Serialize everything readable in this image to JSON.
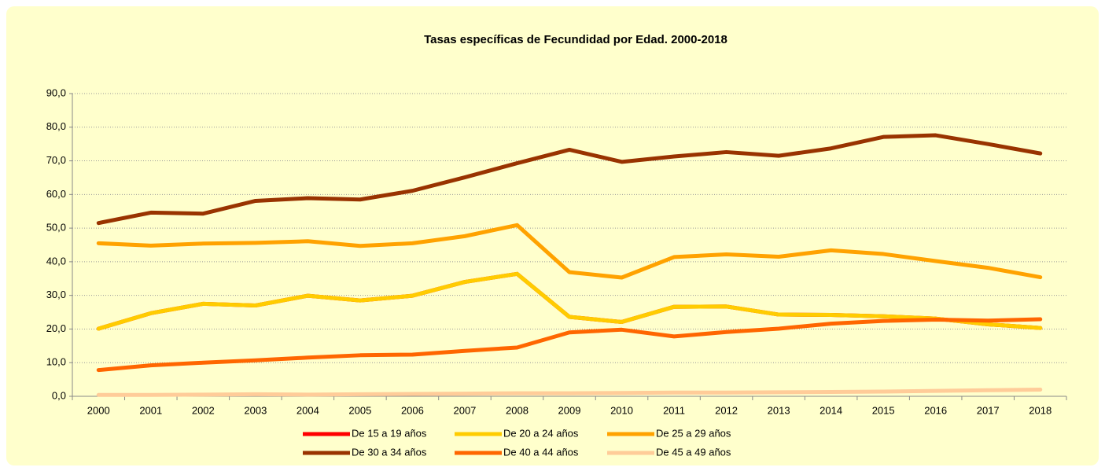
{
  "chart_data": {
    "type": "line",
    "title": "Tasas específicas de Fecundidad por Edad. 2000-2018",
    "categories": [
      "2000",
      "2001",
      "2002",
      "2003",
      "2004",
      "2005",
      "2006",
      "2007",
      "2008",
      "2009",
      "2010",
      "2011",
      "2012",
      "2013",
      "2014",
      "2015",
      "2016",
      "2017",
      "2018"
    ],
    "series": [
      {
        "name": "De 15 a 19 años",
        "color": "#ff0000",
        "values": [
          20.1,
          24.7,
          27.5,
          27.0,
          29.9,
          28.5,
          29.9,
          34.0,
          36.4,
          23.6,
          22.1,
          26.6,
          26.7,
          24.3,
          24.2,
          23.8,
          23.1,
          21.4,
          20.3
        ]
      },
      {
        "name": "De 20 a 24 años",
        "color": "#ffcc00",
        "values": [
          20.1,
          24.7,
          27.5,
          27.0,
          29.9,
          28.5,
          29.9,
          34.0,
          36.4,
          23.6,
          22.1,
          26.6,
          26.7,
          24.3,
          24.2,
          23.8,
          23.1,
          21.4,
          20.3
        ]
      },
      {
        "name": "De 25 a 29 años",
        "color": "#ffa200",
        "values": [
          45.5,
          44.8,
          45.4,
          45.6,
          46.1,
          44.7,
          45.5,
          47.6,
          50.9,
          36.9,
          35.3,
          41.4,
          42.2,
          41.5,
          43.4,
          42.3,
          40.2,
          38.2,
          35.4
        ]
      },
      {
        "name": "De 30 a 34 años",
        "color": "#993300",
        "values": [
          51.5,
          54.6,
          54.3,
          58.1,
          58.9,
          58.5,
          61.1,
          65.1,
          69.3,
          73.3,
          69.7,
          71.3,
          72.6,
          71.5,
          73.7,
          77.1,
          77.6,
          75.0,
          72.2
        ]
      },
      {
        "name": "De 40 a 44 años",
        "color": "#ff6600",
        "values": [
          7.8,
          9.2,
          10.0,
          10.7,
          11.5,
          12.2,
          12.4,
          13.5,
          14.5,
          19.0,
          19.8,
          17.8,
          19.1,
          20.1,
          21.6,
          22.4,
          22.8,
          22.5,
          22.9
        ]
      },
      {
        "name": "De 45 a 49 años",
        "color": "#ffcc99",
        "values": [
          0.4,
          0.4,
          0.5,
          0.6,
          0.5,
          0.6,
          0.7,
          0.8,
          0.9,
          0.9,
          1.0,
          1.1,
          1.1,
          1.2,
          1.3,
          1.4,
          1.6,
          1.8,
          2.0
        ]
      }
    ],
    "ylim": [
      0,
      90
    ],
    "yticks": [
      {
        "value": 0,
        "label": "0,0"
      },
      {
        "value": 10,
        "label": "10,0"
      },
      {
        "value": 20,
        "label": "20,0"
      },
      {
        "value": 30,
        "label": "30,0"
      },
      {
        "value": 40,
        "label": "40,0"
      },
      {
        "value": 50,
        "label": "50,0"
      },
      {
        "value": 60,
        "label": "60,0"
      },
      {
        "value": 70,
        "label": "70,0"
      },
      {
        "value": 80,
        "label": "80,0"
      },
      {
        "value": 90,
        "label": "90,0"
      }
    ],
    "grid": true,
    "legend": "bottom"
  }
}
